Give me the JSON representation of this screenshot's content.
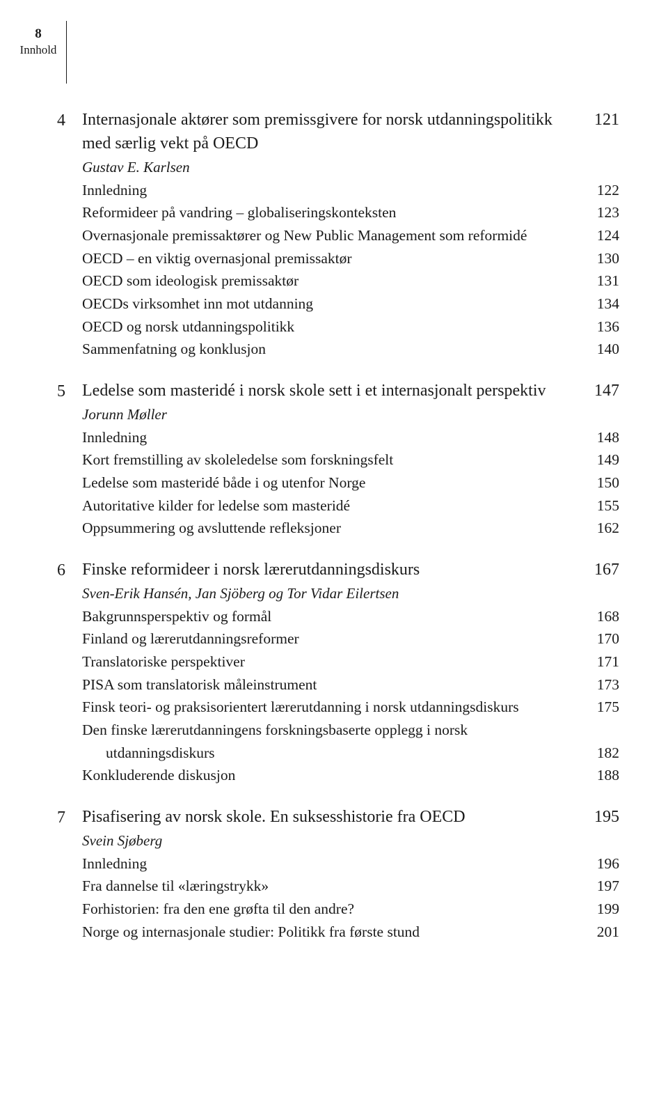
{
  "header": {
    "page_number": "8",
    "section_label": "Innhold"
  },
  "chapters": [
    {
      "number": "4",
      "title": "Internasjonale aktører som premissgivere for norsk utdanningspolitikk med særlig vekt på OECD",
      "page": "121",
      "author": "Gustav E. Karlsen",
      "entries": [
        {
          "text": "Innledning",
          "page": "122"
        },
        {
          "text": "Reformideer på vandring – globaliseringskonteksten",
          "page": "123"
        },
        {
          "text": "Overnasjonale premissaktører og New Public Management som reformidé",
          "page": "124",
          "hanging": true
        },
        {
          "text": "OECD – en viktig overnasjonal premissaktør",
          "page": "130"
        },
        {
          "text": "OECD som ideologisk premissaktør",
          "page": "131"
        },
        {
          "text": "OECDs virksomhet inn mot utdanning",
          "page": "134"
        },
        {
          "text": "OECD og norsk utdanningspolitikk",
          "page": "136"
        },
        {
          "text": "Sammenfatning og konklusjon",
          "page": "140"
        }
      ]
    },
    {
      "number": "5",
      "title": "Ledelse som masteridé i norsk skole sett i et internasjonalt perspektiv",
      "page": "147",
      "author": "Jorunn Møller",
      "entries": [
        {
          "text": "Innledning",
          "page": "148"
        },
        {
          "text": "Kort fremstilling av skoleledelse som forskningsfelt",
          "page": "149"
        },
        {
          "text": "Ledelse som masteridé både i og utenfor Norge",
          "page": "150"
        },
        {
          "text": "Autoritative kilder for ledelse som masteridé",
          "page": "155"
        },
        {
          "text": "Oppsummering og avsluttende refleksjoner",
          "page": "162"
        }
      ]
    },
    {
      "number": "6",
      "title": "Finske reformideer i norsk lærerutdanningsdiskurs",
      "page": "167",
      "author": "Sven-Erik Hansén, Jan Sjöberg og Tor Vidar Eilertsen",
      "entries": [
        {
          "text": "Bakgrunnsperspektiv og formål",
          "page": "168"
        },
        {
          "text": "Finland og lærerutdanningsreformer",
          "page": "170"
        },
        {
          "text": "Translatoriske perspektiver",
          "page": "171"
        },
        {
          "text": "PISA som translatorisk måleinstrument",
          "page": "173"
        },
        {
          "text": "Finsk teori- og praksisorientert lærerutdanning i norsk utdanningsdiskurs",
          "page": "175",
          "hanging": true
        },
        {
          "text": "Den finske lærerutdanningens forskningsbaserte opplegg i norsk utdanningsdiskurs",
          "page": "182",
          "hanging": true
        },
        {
          "text": "Konkluderende diskusjon",
          "page": "188"
        }
      ]
    },
    {
      "number": "7",
      "title": "Pisafisering av norsk skole. En suksesshistorie fra OECD",
      "page": "195",
      "author": "Svein Sjøberg",
      "entries": [
        {
          "text": "Innledning",
          "page": "196"
        },
        {
          "text": "Fra dannelse til «læringstrykk»",
          "page": "197"
        },
        {
          "text": "Forhistorien: fra den ene grøfta til den andre?",
          "page": "199"
        },
        {
          "text": "Norge og internasjonale studier: Politikk fra første stund",
          "page": "201"
        }
      ]
    }
  ]
}
